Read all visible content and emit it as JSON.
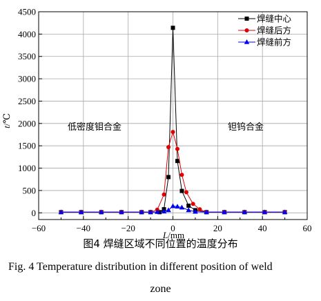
{
  "chart_data": {
    "type": "line",
    "title": "",
    "xlabel_symbol": "L",
    "xlabel_unit": "/mm",
    "ylabel_symbol": "t",
    "ylabel_unit": "/℃",
    "xlim": [
      -60,
      60
    ],
    "ylim": [
      -150,
      4500
    ],
    "x_ticks": [
      -60,
      -40,
      -20,
      0,
      20,
      40,
      60
    ],
    "y_ticks": [
      0,
      500,
      1000,
      1500,
      2000,
      2500,
      3000,
      3500,
      4000,
      4500
    ],
    "grid": true,
    "legend_position": "top-right",
    "annotations": {
      "left_region": "低密度钼合金",
      "right_region": "钽钨合金"
    },
    "series": [
      {
        "name": "焊缝中心",
        "color": "#000000",
        "marker": "square",
        "points": [
          [
            -50,
            15
          ],
          [
            -41,
            15
          ],
          [
            -32,
            15
          ],
          [
            -23,
            15
          ],
          [
            -14,
            15
          ],
          [
            -10,
            15
          ],
          [
            -6,
            15
          ],
          [
            -4,
            80
          ],
          [
            -2,
            800
          ],
          [
            0,
            4140
          ],
          [
            2,
            1160
          ],
          [
            4,
            490
          ],
          [
            7,
            160
          ],
          [
            10,
            60
          ],
          [
            15,
            15
          ],
          [
            23,
            15
          ],
          [
            32,
            15
          ],
          [
            41,
            15
          ],
          [
            50,
            15
          ]
        ]
      },
      {
        "name": "焊缝后方",
        "color": "#e00000",
        "marker": "circle",
        "points": [
          [
            -50,
            15
          ],
          [
            -41,
            15
          ],
          [
            -32,
            15
          ],
          [
            -23,
            15
          ],
          [
            -14,
            15
          ],
          [
            -10,
            15
          ],
          [
            -7,
            70
          ],
          [
            -4,
            410
          ],
          [
            -2,
            1470
          ],
          [
            0,
            1810
          ],
          [
            2,
            1430
          ],
          [
            4,
            850
          ],
          [
            6,
            460
          ],
          [
            9,
            200
          ],
          [
            12,
            80
          ],
          [
            15,
            15
          ],
          [
            23,
            15
          ],
          [
            32,
            15
          ],
          [
            41,
            15
          ],
          [
            50,
            15
          ]
        ]
      },
      {
        "name": "焊缝前方",
        "color": "#0000ee",
        "marker": "triangle",
        "points": [
          [
            -50,
            15
          ],
          [
            -41,
            15
          ],
          [
            -32,
            15
          ],
          [
            -23,
            15
          ],
          [
            -14,
            15
          ],
          [
            -10,
            15
          ],
          [
            -7,
            20
          ],
          [
            -4,
            30
          ],
          [
            -2,
            60
          ],
          [
            0,
            150
          ],
          [
            2,
            140
          ],
          [
            4,
            120
          ],
          [
            7,
            60
          ],
          [
            10,
            25
          ],
          [
            15,
            15
          ],
          [
            23,
            15
          ],
          [
            32,
            15
          ],
          [
            41,
            15
          ],
          [
            50,
            15
          ]
        ]
      }
    ]
  },
  "caption": {
    "cn": "图4   焊缝区域不同位置的温度分布",
    "en_line1": "Fig. 4    Temperature distribution in different position of weld",
    "en_line2": "zone"
  }
}
